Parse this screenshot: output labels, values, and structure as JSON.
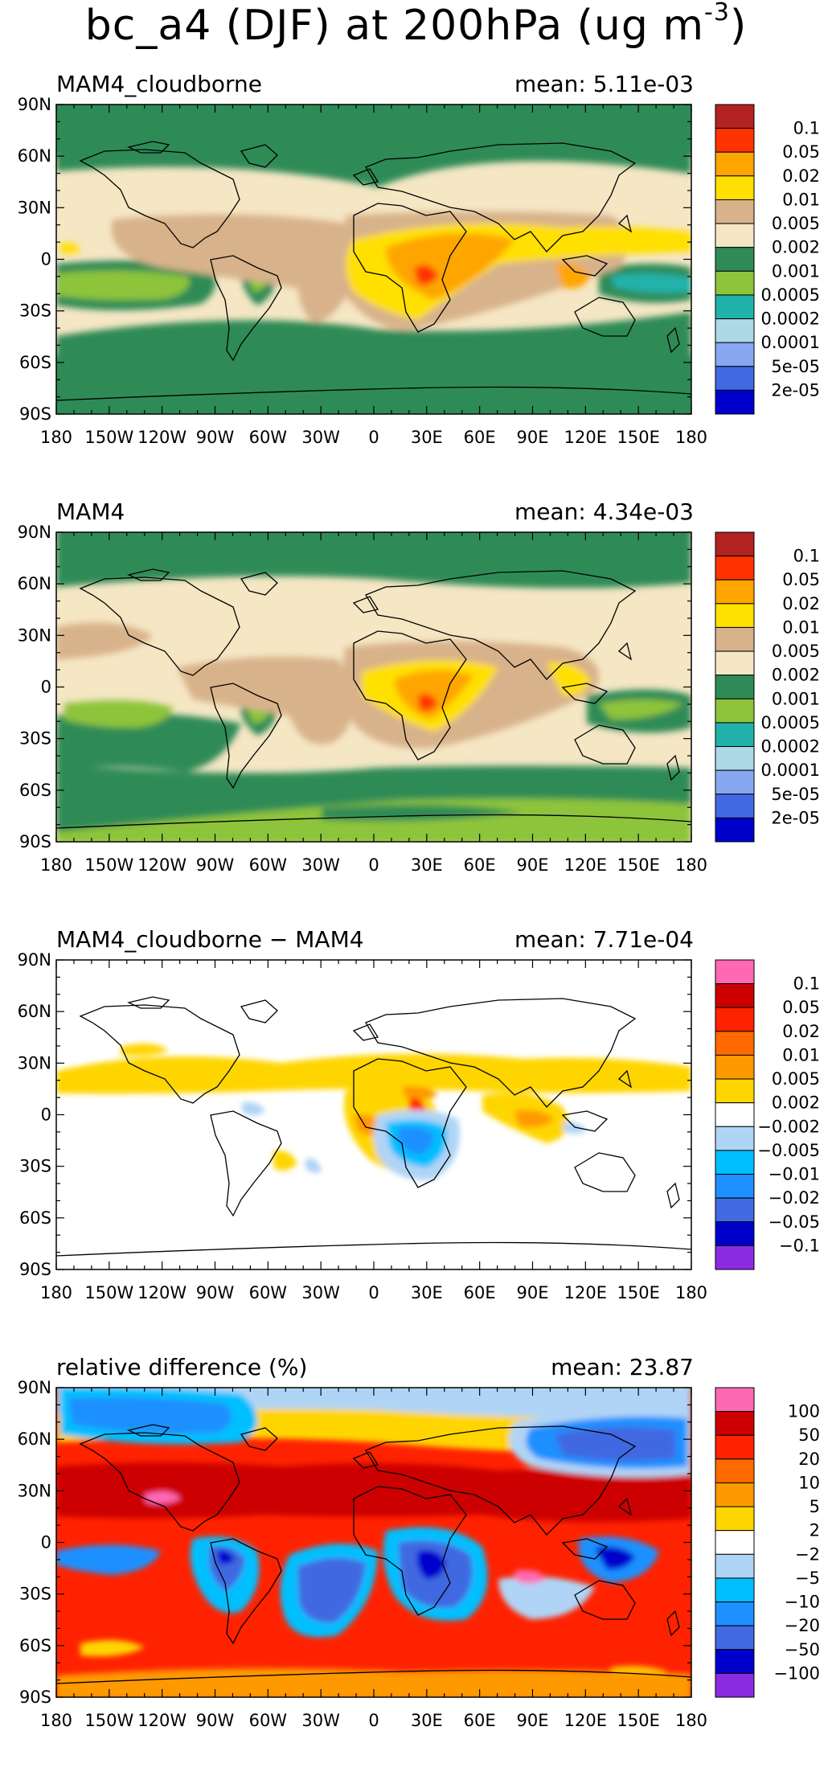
{
  "figure_title": "bc_a4 (DJF) at 200hPa (ug m",
  "figure_title_exponent": "-3",
  "figure_title_close": ")",
  "colors": {
    "conc": [
      "#b22222",
      "#ff3300",
      "#ffa500",
      "#ffe000",
      "#d8b28a",
      "#f5e6c4",
      "#2e8b57",
      "#8ec43a",
      "#20b2aa",
      "#add8e6",
      "#87a8f0",
      "#4169e1",
      "#0000cd"
    ],
    "diff": [
      "#ff69b4",
      "#cc0000",
      "#ff2200",
      "#ff6a00",
      "#ff9900",
      "#ffd500",
      "#ffffff",
      "#b0d4f5",
      "#00bfff",
      "#1e90ff",
      "#4169e1",
      "#0000cd",
      "#8a2be2"
    ]
  },
  "chart_data": [
    {
      "type": "heatmap",
      "title": "MAM4_cloudborne",
      "mean_label": "mean: 5.11e-03",
      "colorbar_labels": [
        "0.1",
        "0.05",
        "0.02",
        "0.01",
        "0.005",
        "0.002",
        "0.001",
        "0.0005",
        "0.0002",
        "0.0001",
        "5e-05",
        "2e-05"
      ],
      "x_ticks": [
        "180",
        "150W",
        "120W",
        "90W",
        "60W",
        "30W",
        "0",
        "30E",
        "60E",
        "90E",
        "120E",
        "150E",
        "180"
      ],
      "y_ticks": [
        "90N",
        "60N",
        "30N",
        "0",
        "30S",
        "60S",
        "90S"
      ],
      "xlim": [
        -180,
        180
      ],
      "ylim": [
        -90,
        90
      ]
    },
    {
      "type": "heatmap",
      "title": "MAM4",
      "mean_label": "mean: 4.34e-03",
      "colorbar_labels": [
        "0.1",
        "0.05",
        "0.02",
        "0.01",
        "0.005",
        "0.002",
        "0.001",
        "0.0005",
        "0.0002",
        "0.0001",
        "5e-05",
        "2e-05"
      ],
      "x_ticks": [
        "180",
        "150W",
        "120W",
        "90W",
        "60W",
        "30W",
        "0",
        "30E",
        "60E",
        "90E",
        "120E",
        "150E",
        "180"
      ],
      "y_ticks": [
        "90N",
        "60N",
        "30N",
        "0",
        "30S",
        "60S",
        "90S"
      ],
      "xlim": [
        -180,
        180
      ],
      "ylim": [
        -90,
        90
      ]
    },
    {
      "type": "heatmap",
      "title": "MAM4_cloudborne − MAM4",
      "mean_label": "mean: 7.71e-04",
      "colorbar_labels": [
        "0.1",
        "0.05",
        "0.02",
        "0.01",
        "0.005",
        "0.002",
        "−0.002",
        "−0.005",
        "−0.01",
        "−0.02",
        "−0.05",
        "−0.1"
      ],
      "x_ticks": [
        "180",
        "150W",
        "120W",
        "90W",
        "60W",
        "30W",
        "0",
        "30E",
        "60E",
        "90E",
        "120E",
        "150E",
        "180"
      ],
      "y_ticks": [
        "90N",
        "60N",
        "30N",
        "0",
        "30S",
        "60S",
        "90S"
      ],
      "xlim": [
        -180,
        180
      ],
      "ylim": [
        -90,
        90
      ]
    },
    {
      "type": "heatmap",
      "title": "relative difference (%)",
      "mean_label": "mean: 23.87",
      "colorbar_labels": [
        "100",
        "50",
        "20",
        "10",
        "5",
        "2",
        "−2",
        "−5",
        "−10",
        "−20",
        "−50",
        "−100"
      ],
      "x_ticks": [
        "180",
        "150W",
        "120W",
        "90W",
        "60W",
        "30W",
        "0",
        "30E",
        "60E",
        "90E",
        "120E",
        "150E",
        "180"
      ],
      "y_ticks": [
        "90N",
        "60N",
        "30N",
        "0",
        "30S",
        "60S",
        "90S"
      ],
      "xlim": [
        -180,
        180
      ],
      "ylim": [
        -90,
        90
      ]
    }
  ]
}
